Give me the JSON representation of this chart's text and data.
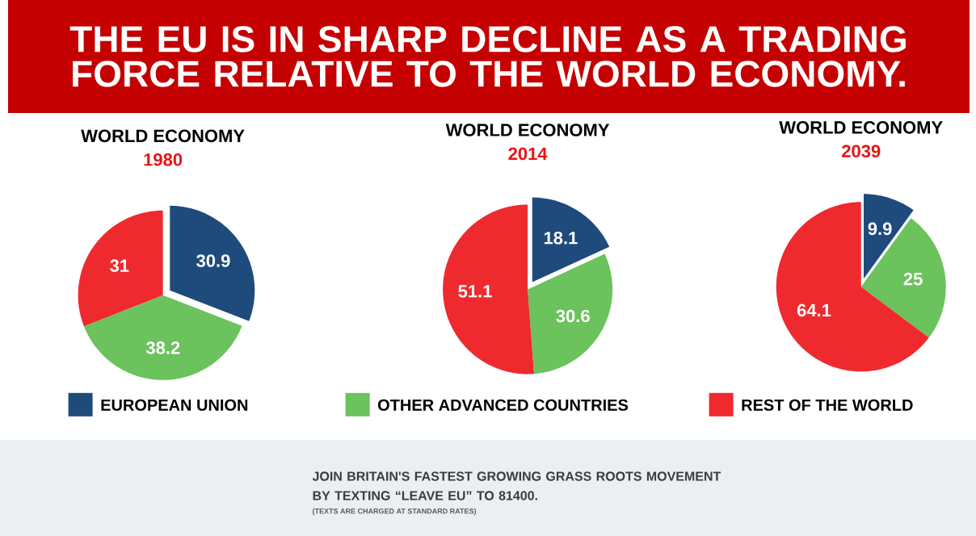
{
  "chart_data": [
    {
      "type": "pie",
      "title": "WORLD ECONOMY",
      "subtitle": "1980",
      "categories": [
        "EUROPEAN UNION",
        "OTHER ADVANCED COUNTRIES",
        "REST OF THE WORLD"
      ],
      "values": [
        30.9,
        38.2,
        31
      ],
      "colors": [
        "#1f4a7c",
        "#6cc25d",
        "#ee2a2e"
      ],
      "data_labels": true,
      "legend": "bottom",
      "annotations": [
        "THE EU IS IN SHARP DECLINE AS A TRADING FORCE RELATIVE TO THE WORLD ECONOMY.",
        "JOIN BRITAIN'S FASTEST GROWING GRASS ROOTS MOVEMENT BY TEXTING “LEAVE EU” TO 81400.",
        "(TEXTS ARE CHARGED AT STANDARD RATES)"
      ]
    },
    {
      "type": "pie",
      "title": "WORLD ECONOMY",
      "subtitle": "2014",
      "categories": [
        null,
        null,
        null
      ],
      "values": [
        18.1,
        30.6,
        51.1
      ],
      "colors": [
        "#1f4a7c",
        "#6cc25d",
        "#ee2a2e"
      ],
      "data_labels": true
    },
    {
      "type": "pie",
      "title": "WORLD ECONOMY",
      "subtitle": "2039",
      "categories": [
        null,
        null,
        null
      ],
      "values": [
        9.9,
        25,
        64.1
      ],
      "colors": [
        "#1f4a7c",
        "#6cc25d",
        "#ee2a2e"
      ],
      "data_labels": true
    }
  ]
}
